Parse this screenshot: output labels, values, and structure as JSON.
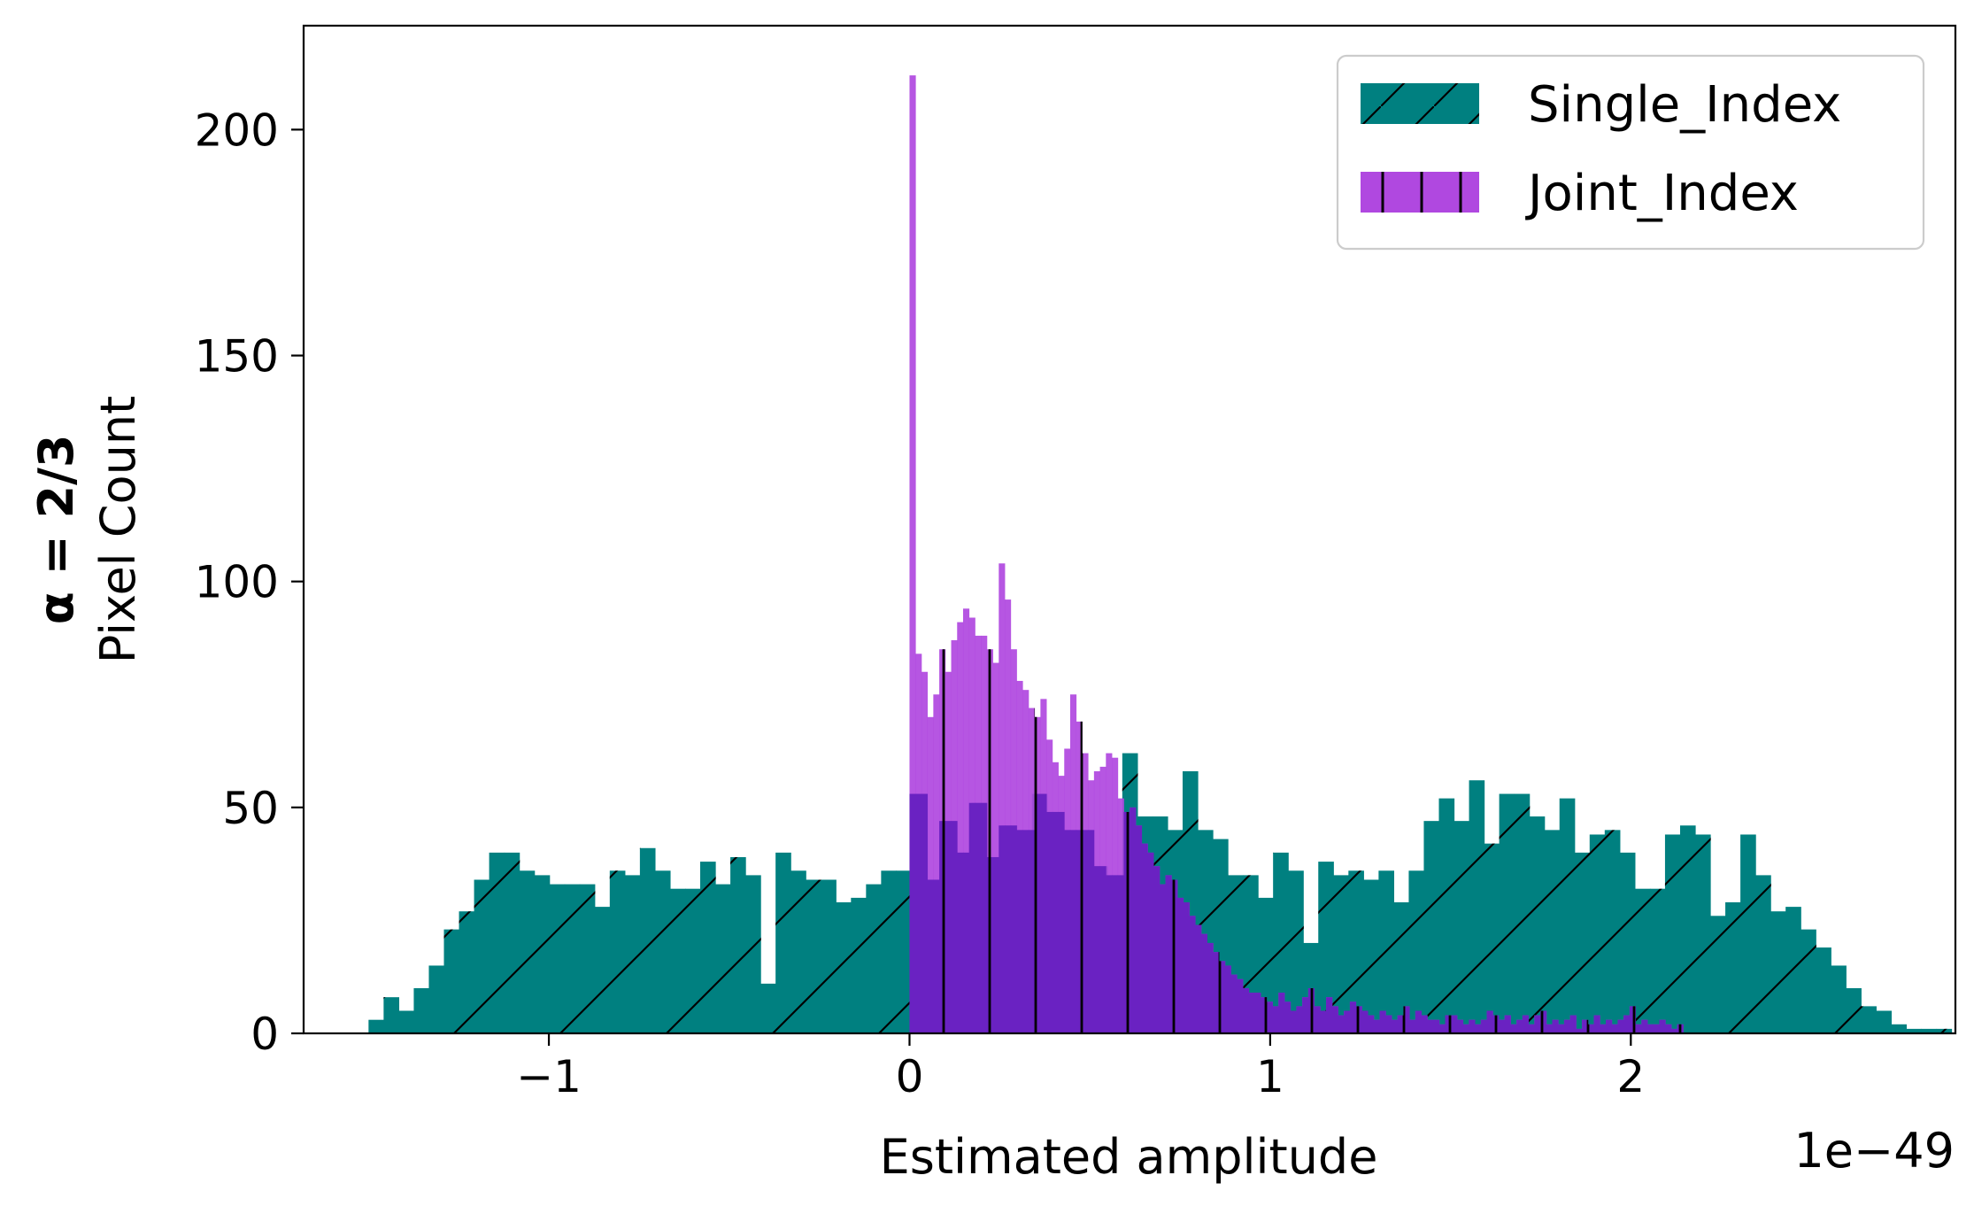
{
  "colors": {
    "single": "#008080",
    "joint": "#b048e0",
    "overlap": "#6a22c2",
    "axis": "#000000"
  },
  "chart_data": {
    "type": "bar",
    "subtype": "histogram",
    "xlabel": "Estimated amplitude",
    "x_offset_label": "1e−49",
    "ylabel_bold": "α = 2/3",
    "ylabel": "Pixel Count",
    "xlim": [
      -1.68,
      2.9
    ],
    "ylim": [
      0,
      223
    ],
    "xticks": [
      -1,
      0,
      1,
      2
    ],
    "xtick_labels": [
      "−1",
      "0",
      "1",
      "2"
    ],
    "yticks": [
      0,
      50,
      100,
      150,
      200
    ],
    "ytick_labels": [
      "0",
      "50",
      "100",
      "150",
      "200"
    ],
    "grid": false,
    "legend_position": "top-right",
    "series": [
      {
        "name": "Single_Index",
        "color": "#008080",
        "hatch": "diagonal",
        "bin_start": -1.5,
        "bin_width": 0.0418,
        "counts": [
          3,
          8,
          5,
          10,
          15,
          23,
          27,
          34,
          40,
          40,
          36,
          35,
          33,
          33,
          33,
          28,
          36,
          35,
          41,
          36,
          32,
          32,
          38,
          33,
          39,
          35,
          11,
          40,
          36,
          34,
          34,
          29,
          30,
          33,
          36,
          36,
          53,
          34,
          47,
          40,
          51,
          39,
          46,
          45,
          53,
          49,
          45,
          45,
          37,
          35,
          62,
          48,
          48,
          45,
          58,
          45,
          43,
          35,
          35,
          30,
          40,
          36,
          20,
          38,
          35,
          36,
          34,
          36,
          29,
          36,
          47,
          52,
          47,
          56,
          42,
          53,
          53,
          48,
          45,
          52,
          40,
          44,
          45,
          40,
          32,
          32,
          44,
          46,
          44,
          26,
          29,
          44,
          35,
          27,
          28,
          23,
          19,
          15,
          10,
          6,
          5,
          2,
          1,
          1,
          1,
          0,
          1,
          1,
          0,
          0,
          0,
          0,
          0,
          0,
          0,
          1
        ]
      },
      {
        "name": "Joint_Index",
        "color": "#b048e0",
        "hatch": "vertical",
        "bin_start": 0.0,
        "bin_width": 0.0165,
        "counts": [
          212,
          84,
          80,
          70,
          75,
          85,
          80,
          87,
          91,
          94,
          92,
          88,
          88,
          85,
          82,
          104,
          96,
          85,
          78,
          76,
          72,
          70,
          74,
          65,
          60,
          57,
          63,
          75,
          69,
          62,
          56,
          58,
          59,
          62,
          61,
          52,
          49,
          50,
          46,
          42,
          40,
          37,
          33,
          35,
          34,
          30,
          29,
          26,
          24,
          22,
          20,
          18,
          16,
          15,
          13,
          12,
          10,
          9,
          9,
          8,
          7,
          6,
          9,
          7,
          5,
          6,
          8,
          10,
          6,
          5,
          8,
          6,
          4,
          5,
          7,
          6,
          5,
          4,
          3,
          5,
          4,
          3,
          4,
          6,
          3,
          5,
          4,
          3,
          3,
          2,
          4,
          4,
          3,
          2,
          3,
          2,
          3,
          5,
          4,
          3,
          4,
          2,
          3,
          4,
          2,
          4,
          5,
          2,
          3,
          2,
          3,
          4,
          1,
          3,
          2,
          4,
          2,
          3,
          2,
          3,
          4,
          6,
          2,
          3,
          2,
          2,
          3,
          2,
          1,
          2
        ]
      }
    ]
  }
}
